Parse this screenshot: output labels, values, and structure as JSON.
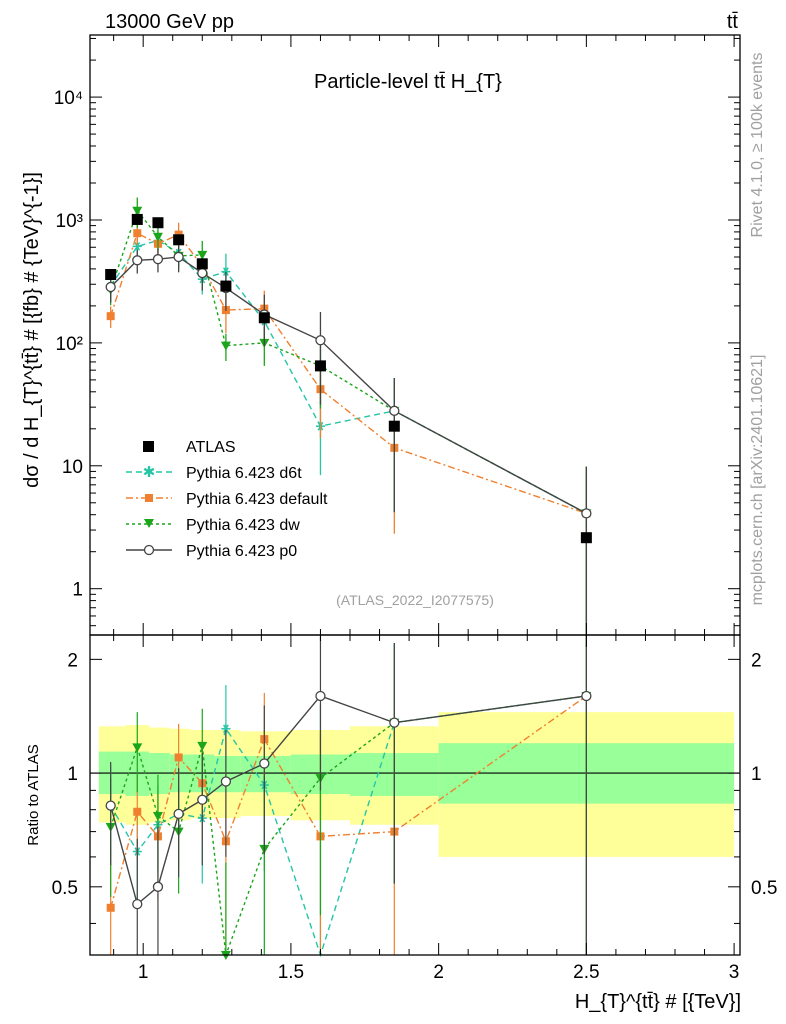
{
  "header": {
    "energy_label": "13000 GeV pp",
    "process_label": "tt̄",
    "rivet_label": "Rivet 4.1.0, ≥ 100k events",
    "mcplots_label": "mcplots.cern.ch [arXiv:2401.10621]"
  },
  "chart_data": {
    "type": "scatter",
    "title": "Particle-level tt̄  H_{T}",
    "analysis_id": "(ATLAS_2022_I2077575)",
    "xlabel": "H_{T}^{tt̄} # [{TeV}]",
    "ylabel": "dσ / d H_{T}^{tt̄} # [{fb} # {TeV}^{-1}]",
    "ratio_ylabel": "Ratio to ATLAS",
    "xlim": [
      0.82,
      3.02
    ],
    "ylim": [
      0.42,
      32000
    ],
    "ratio_ylim": [
      0.33,
      2.32
    ],
    "x_ticks": [
      1,
      1.5,
      2,
      2.5,
      3
    ],
    "x_tick_labels": [
      "1",
      "1.5",
      "2",
      "2.5",
      "3"
    ],
    "y_ticks": [
      1,
      10,
      100,
      1000,
      10000
    ],
    "y_tick_labels": [
      "1",
      "10",
      "10²",
      "10³",
      "10⁴"
    ],
    "ratio_ticks": [
      0.5,
      1,
      2
    ],
    "ratio_tick_labels": [
      "0.5",
      "1",
      "2"
    ],
    "bins": [
      {
        "lo": 0.85,
        "hi": 0.94
      },
      {
        "lo": 0.94,
        "hi": 1.02
      },
      {
        "lo": 1.02,
        "hi": 1.09
      },
      {
        "lo": 1.09,
        "hi": 1.16
      },
      {
        "lo": 1.16,
        "hi": 1.24
      },
      {
        "lo": 1.24,
        "hi": 1.33
      },
      {
        "lo": 1.33,
        "hi": 1.5
      },
      {
        "lo": 1.5,
        "hi": 1.7
      },
      {
        "lo": 1.7,
        "hi": 2.0
      },
      {
        "lo": 2.0,
        "hi": 3.0
      }
    ],
    "band_yellow": [
      [
        0.74,
        1.33
      ],
      [
        0.73,
        1.34
      ],
      [
        0.74,
        1.32
      ],
      [
        0.75,
        1.31
      ],
      [
        0.76,
        1.3
      ],
      [
        0.76,
        1.3
      ],
      [
        0.77,
        1.29
      ],
      [
        0.75,
        1.3
      ],
      [
        0.73,
        1.33
      ],
      [
        0.6,
        1.45
      ]
    ],
    "band_green": [
      [
        0.88,
        1.14
      ],
      [
        0.87,
        1.14
      ],
      [
        0.88,
        1.13
      ],
      [
        0.89,
        1.12
      ],
      [
        0.89,
        1.12
      ],
      [
        0.89,
        1.11
      ],
      [
        0.89,
        1.11
      ],
      [
        0.88,
        1.12
      ],
      [
        0.87,
        1.13
      ],
      [
        0.83,
        1.2
      ]
    ],
    "series": [
      {
        "name": "ATLAS",
        "marker": "square",
        "color": "#000000",
        "line": "none",
        "x": [
          0.89,
          0.98,
          1.05,
          1.12,
          1.2,
          1.28,
          1.41,
          1.6,
          1.85,
          2.5
        ],
        "y": [
          360,
          1010,
          950,
          690,
          440,
          290,
          160,
          65,
          21,
          2.6
        ],
        "ratio": [
          1,
          1,
          1,
          1,
          1,
          1,
          1,
          1,
          1,
          1
        ],
        "ratio_err": [
          0,
          0,
          0,
          0,
          0,
          0,
          0,
          0,
          0,
          0
        ]
      },
      {
        "name": "Pythia 6.423 d6t",
        "marker": "star",
        "color": "#25c5a5",
        "line": "6,4",
        "x": [
          0.89,
          0.98,
          1.05,
          1.12,
          1.2,
          1.28,
          1.41,
          1.6,
          1.85,
          2.5
        ],
        "y": [
          290,
          610,
          680,
          540,
          330,
          380,
          150,
          21,
          28,
          4.1
        ],
        "ratio": [
          0.82,
          0.62,
          0.73,
          0.78,
          0.76,
          1.31,
          0.93,
          0.32,
          1.36,
          1.6
        ],
        "ratio_err": [
          0.22,
          0.18,
          0.2,
          0.22,
          0.25,
          0.4,
          0.38,
          0.6,
          0.85,
          1.4
        ]
      },
      {
        "name": "Pythia 6.423 default",
        "marker": "filled-square",
        "color": "#f08030",
        "line": "7,3,2,3",
        "x": [
          0.89,
          0.98,
          1.05,
          1.12,
          1.2,
          1.28,
          1.41,
          1.6,
          1.85,
          2.5
        ],
        "y": [
          165,
          780,
          640,
          760,
          420,
          185,
          190,
          42,
          14,
          4.1
        ],
        "ratio": [
          0.44,
          0.79,
          0.68,
          1.1,
          0.94,
          0.66,
          1.23,
          0.68,
          0.7,
          1.6
        ],
        "ratio_err": [
          0.2,
          0.2,
          0.22,
          0.25,
          0.28,
          0.35,
          0.4,
          0.6,
          0.8,
          1.4
        ]
      },
      {
        "name": "Pythia 6.423 dw",
        "marker": "triangle-down",
        "color": "#1aa51a",
        "line": "3,3",
        "x": [
          0.89,
          0.98,
          1.05,
          1.12,
          1.2,
          1.28,
          1.41,
          1.6,
          1.85,
          2.5
        ],
        "y": [
          270,
          1190,
          730,
          510,
          520,
          95,
          100,
          65,
          28,
          4.1
        ],
        "ratio": [
          0.72,
          1.17,
          0.77,
          0.7,
          1.18,
          0.33,
          0.63,
          0.97,
          1.36,
          1.6
        ],
        "ratio_err": [
          0.25,
          0.28,
          0.22,
          0.22,
          0.3,
          0.25,
          0.35,
          0.55,
          0.85,
          1.4
        ]
      },
      {
        "name": "Pythia 6.423 p0",
        "marker": "open-circle",
        "color": "#444444",
        "line": "solid",
        "x": [
          0.89,
          0.98,
          1.05,
          1.12,
          1.2,
          1.28,
          1.41,
          1.6,
          1.85,
          2.5
        ],
        "y": [
          285,
          470,
          480,
          500,
          370,
          280,
          170,
          105,
          28,
          4.1
        ],
        "ratio": [
          0.82,
          0.45,
          0.5,
          0.78,
          0.85,
          0.95,
          1.06,
          1.6,
          1.36,
          1.6
        ],
        "ratio_err": [
          0.25,
          0.22,
          0.22,
          0.25,
          0.28,
          0.35,
          0.45,
          0.7,
          0.85,
          1.4
        ]
      }
    ]
  }
}
